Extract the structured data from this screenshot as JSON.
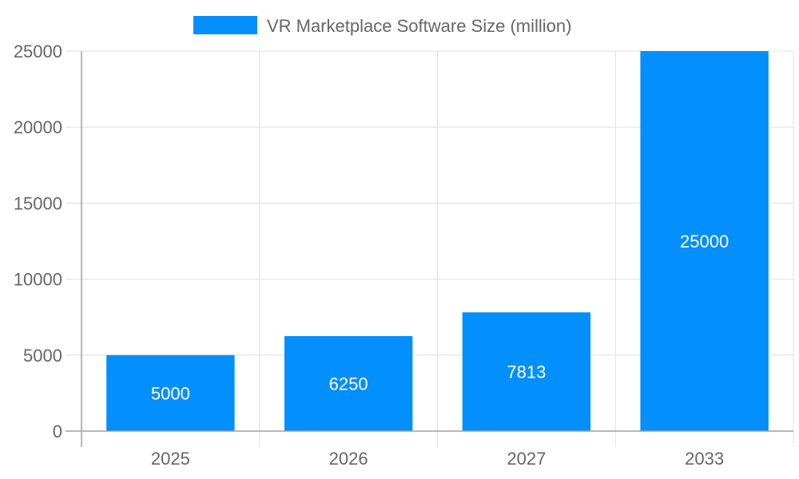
{
  "chart_data": {
    "type": "bar",
    "categories": [
      "2025",
      "2026",
      "2027",
      "2033"
    ],
    "series": [
      {
        "name": "VR Marketplace Software Size (million)",
        "values": [
          5000,
          6250,
          7813,
          25000
        ],
        "color": "#038ffd"
      }
    ],
    "data_labels": [
      "5000",
      "6250",
      "7813",
      "25000"
    ],
    "ylim": [
      0,
      25000
    ],
    "yticks": [
      "0",
      "5000",
      "10000",
      "15000",
      "20000",
      "25000"
    ],
    "grid": true,
    "legend": "top-center",
    "label_color": "#ffffff",
    "tick_color": "#666666",
    "grid_color": "#e0e0e0",
    "axis_color": "#a0a0a0"
  }
}
